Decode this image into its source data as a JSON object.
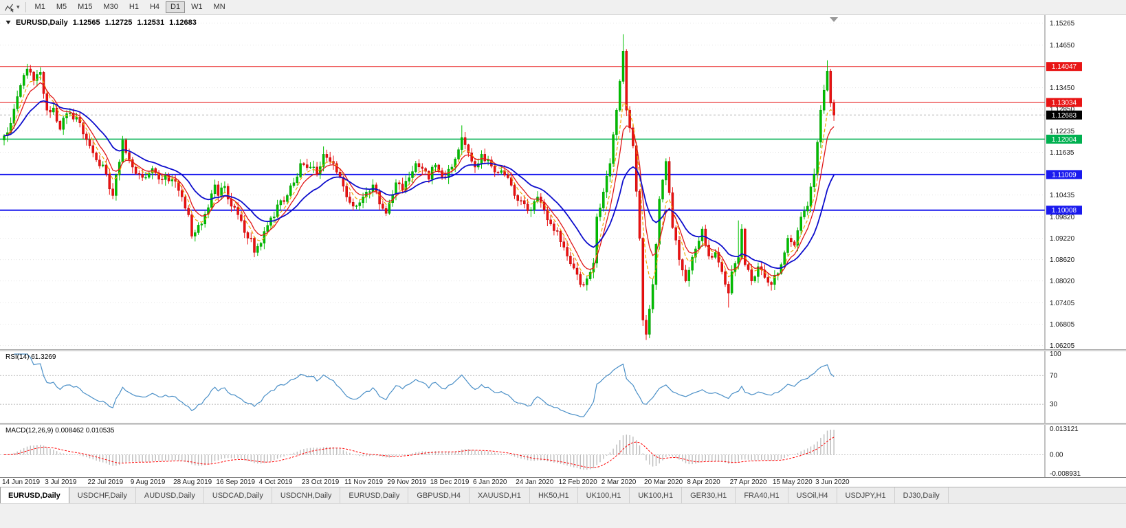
{
  "toolbar": {
    "timeframes": [
      {
        "label": "M1",
        "active": false
      },
      {
        "label": "M5",
        "active": false
      },
      {
        "label": "M15",
        "active": false
      },
      {
        "label": "M30",
        "active": false
      },
      {
        "label": "H1",
        "active": false
      },
      {
        "label": "H4",
        "active": false
      },
      {
        "label": "D1",
        "active": true
      },
      {
        "label": "W1",
        "active": false
      },
      {
        "label": "MN",
        "active": false
      }
    ]
  },
  "chart": {
    "symbol": "EURUSD,Daily",
    "ohlc": {
      "open": "1.12565",
      "high": "1.12725",
      "low": "1.12531",
      "close": "1.12683"
    }
  },
  "indicators": {
    "rsi_label": "RSI(14) 61.3269",
    "macd_label": "MACD(12,26,9) 0.008462 0.010535"
  },
  "tabs": [
    {
      "label": "EURUSD,Daily",
      "active": true
    },
    {
      "label": "USDCHF,Daily",
      "active": false
    },
    {
      "label": "AUDUSD,Daily",
      "active": false
    },
    {
      "label": "USDCAD,Daily",
      "active": false
    },
    {
      "label": "USDCNH,Daily",
      "active": false
    },
    {
      "label": "EURUSD,Daily",
      "active": false
    },
    {
      "label": "GBPUSD,H4",
      "active": false
    },
    {
      "label": "XAUUSD,H1",
      "active": false
    },
    {
      "label": "HK50,H1",
      "active": false
    },
    {
      "label": "UK100,H1",
      "active": false
    },
    {
      "label": "UK100,H1",
      "active": false
    },
    {
      "label": "GER30,H1",
      "active": false
    },
    {
      "label": "FRA40,H1",
      "active": false
    },
    {
      "label": "USOil,H4",
      "active": false
    },
    {
      "label": "USDJPY,H1",
      "active": false
    },
    {
      "label": "DJ30,Daily",
      "active": false
    }
  ],
  "chart_data": {
    "type": "candlestick",
    "symbol": "EURUSD",
    "timeframe": "Daily",
    "price_range": {
      "min": 1.061,
      "max": 1.1549
    },
    "price_axis_labels": [
      "1.15265",
      "1.14650",
      "1.13450",
      "1.12850",
      "1.12235",
      "1.11635",
      "1.10435",
      "1.09820",
      "1.09220",
      "1.08620",
      "1.08020",
      "1.07405",
      "1.06805",
      "1.06205"
    ],
    "levels": [
      {
        "price": 1.14047,
        "label": "1.14047",
        "color": "#e81515",
        "width": 1
      },
      {
        "price": 1.13034,
        "label": "1.13034",
        "color": "#e81515",
        "width": 1
      },
      {
        "price": 1.12004,
        "label": "1.12004",
        "color": "#00b050",
        "width": 1.5
      },
      {
        "price": 1.11009,
        "label": "1.11009",
        "color": "#1a1aee",
        "width": 2
      },
      {
        "price": 1.10008,
        "label": "1.10008",
        "color": "#1a1aee",
        "width": 2
      }
    ],
    "current_price": {
      "value": 1.12683,
      "label": "1.12683",
      "badge_color": "#000000"
    },
    "colors": {
      "up": "#00c000",
      "up_border": "#009000",
      "down": "#ee1111",
      "down_border": "#b00000",
      "grid": "#e4e4e4",
      "axis_text": "#111111",
      "rsi": "#4a8fc7",
      "macd_hist": "#bdbdbd",
      "macd_signal": "#ff0000"
    },
    "moving_averages": [
      {
        "period": 5,
        "method": "ema",
        "color": "#f0a500",
        "dash": "5 3",
        "width": 1.2
      },
      {
        "period": 8,
        "method": "ema",
        "color": "#e01818",
        "dash": "",
        "width": 1.3
      },
      {
        "period": 20,
        "method": "ema",
        "color": "#0d0dcc",
        "dash": "",
        "width": 1.8
      }
    ],
    "total_days": 253,
    "close_waypoints": [
      [
        0,
        1.121
      ],
      [
        2,
        1.1245
      ],
      [
        4,
        1.132
      ],
      [
        6,
        1.138
      ],
      [
        7,
        1.1398
      ],
      [
        9,
        1.1365
      ],
      [
        11,
        1.1388
      ],
      [
        13,
        1.1282
      ],
      [
        15,
        1.1288
      ],
      [
        17,
        1.1228
      ],
      [
        19,
        1.1272
      ],
      [
        22,
        1.1262
      ],
      [
        24,
        1.1215
      ],
      [
        26,
        1.1182
      ],
      [
        28,
        1.1142
      ],
      [
        30,
        1.1128
      ],
      [
        33,
        1.1042
      ],
      [
        36,
        1.1198
      ],
      [
        39,
        1.1122
      ],
      [
        41,
        1.1102
      ],
      [
        43,
        1.1093
      ],
      [
        45,
        1.1118
      ],
      [
        47,
        1.1088
      ],
      [
        49,
        1.1098
      ],
      [
        52,
        1.1082
      ],
      [
        54,
        1.1038
      ],
      [
        56,
        1.0988
      ],
      [
        57,
        1.0928
      ],
      [
        60,
        1.0962
      ],
      [
        62,
        1.1008
      ],
      [
        64,
        1.1072
      ],
      [
        65,
        1.1042
      ],
      [
        67,
        1.1068
      ],
      [
        69,
        1.1012
      ],
      [
        71,
        1.0988
      ],
      [
        73,
        1.0938
      ],
      [
        75,
        1.0922
      ],
      [
        76,
        1.0882
      ],
      [
        78,
        1.0908
      ],
      [
        80,
        1.0958
      ],
      [
        82,
        1.0982
      ],
      [
        84,
        1.1028
      ],
      [
        86,
        1.1042
      ],
      [
        88,
        1.1078
      ],
      [
        90,
        1.1132
      ],
      [
        93,
        1.1122
      ],
      [
        95,
        1.1102
      ],
      [
        97,
        1.1158
      ],
      [
        99,
        1.1138
      ],
      [
        101,
        1.1108
      ],
      [
        103,
        1.1068
      ],
      [
        104,
        1.1038
      ],
      [
        106,
        1.1012
      ],
      [
        108,
        1.1022
      ],
      [
        110,
        1.1052
      ],
      [
        112,
        1.1072
      ],
      [
        114,
        1.1018
      ],
      [
        116,
        1.0992
      ],
      [
        117,
        1.1022
      ],
      [
        119,
        1.1078
      ],
      [
        121,
        1.1058
      ],
      [
        123,
        1.1092
      ],
      [
        125,
        1.1132
      ],
      [
        127,
        1.1118
      ],
      [
        129,
        1.1088
      ],
      [
        130,
        1.1122
      ],
      [
        132,
        1.1112
      ],
      [
        134,
        1.1092
      ],
      [
        136,
        1.1122
      ],
      [
        139,
        1.1205
      ],
      [
        141,
        1.1162
      ],
      [
        143,
        1.1122
      ],
      [
        145,
        1.1158
      ],
      [
        147,
        1.1142
      ],
      [
        149,
        1.1108
      ],
      [
        151,
        1.1112
      ],
      [
        153,
        1.1092
      ],
      [
        155,
        1.1042
      ],
      [
        156,
        1.1028
      ],
      [
        158,
        1.1018
      ],
      [
        160,
        1.1002
      ],
      [
        162,
        1.1038
      ],
      [
        164,
        1.1002
      ],
      [
        166,
        1.0962
      ],
      [
        168,
        1.0942
      ],
      [
        169,
        1.0912
      ],
      [
        171,
        1.0872
      ],
      [
        173,
        1.0838
      ],
      [
        175,
        1.0792
      ],
      [
        177,
        1.0808
      ],
      [
        179,
        1.0852
      ],
      [
        180,
        1.0982
      ],
      [
        182,
        1.1052
      ],
      [
        184,
        1.1132
      ],
      [
        186,
        1.1282
      ],
      [
        188,
        1.1448
      ],
      [
        189,
        1.1282
      ],
      [
        191,
        1.1182
      ],
      [
        193,
        1.0922
      ],
      [
        194,
        1.0692
      ],
      [
        195,
        1.0652
      ],
      [
        197,
        1.0792
      ],
      [
        199,
        1.1032
      ],
      [
        201,
        1.1138
      ],
      [
        203,
        1.0952
      ],
      [
        205,
        1.0862
      ],
      [
        207,
        1.0802
      ],
      [
        208,
        1.0832
      ],
      [
        210,
        1.0892
      ],
      [
        212,
        1.0948
      ],
      [
        214,
        1.0872
      ],
      [
        216,
        1.0882
      ],
      [
        218,
        1.0828
      ],
      [
        220,
        1.0768
      ],
      [
        221,
        1.0828
      ],
      [
        223,
        1.0868
      ],
      [
        224,
        1.0948
      ],
      [
        225,
        1.0848
      ],
      [
        227,
        1.0802
      ],
      [
        229,
        1.0842
      ],
      [
        231,
        1.0812
      ],
      [
        233,
        1.0792
      ],
      [
        234,
        1.0818
      ],
      [
        236,
        1.0848
      ],
      [
        238,
        1.0922
      ],
      [
        240,
        1.0902
      ],
      [
        242,
        1.0982
      ],
      [
        244,
        1.1012
      ],
      [
        246,
        1.1102
      ],
      [
        247,
        1.1192
      ],
      [
        248,
        1.1282
      ],
      [
        249,
        1.1338
      ],
      [
        250,
        1.1392
      ],
      [
        251,
        1.1302
      ],
      [
        252,
        1.1268
      ]
    ],
    "wick_overrides": [
      [
        7,
        "h",
        1.1412
      ],
      [
        76,
        "l",
        1.0879
      ],
      [
        97,
        "h",
        1.118
      ],
      [
        139,
        "h",
        1.1239
      ],
      [
        188,
        "h",
        1.1495
      ],
      [
        195,
        "l",
        1.0636
      ],
      [
        220,
        "l",
        1.0727
      ],
      [
        223,
        "h",
        1.0972
      ],
      [
        250,
        "h",
        1.1422
      ]
    ],
    "date_ticks": [
      [
        0,
        "14 Jun 2019"
      ],
      [
        13,
        "3 Jul 2019"
      ],
      [
        26,
        "22 Jul 2019"
      ],
      [
        39,
        "9 Aug 2019"
      ],
      [
        52,
        "28 Aug 2019"
      ],
      [
        65,
        "16 Sep 2019"
      ],
      [
        78,
        "4 Oct 2019"
      ],
      [
        91,
        "23 Oct 2019"
      ],
      [
        104,
        "11 Nov 2019"
      ],
      [
        117,
        "29 Nov 2019"
      ],
      [
        130,
        "18 Dec 2019"
      ],
      [
        143,
        "6 Jan 2020"
      ],
      [
        156,
        "24 Jan 2020"
      ],
      [
        169,
        "12 Feb 2020"
      ],
      [
        182,
        "2 Mar 2020"
      ],
      [
        195,
        "20 Mar 2020"
      ],
      [
        208,
        "8 Apr 2020"
      ],
      [
        221,
        "27 Apr 2020"
      ],
      [
        234,
        "15 May 2020"
      ],
      [
        247,
        "3 Jun 2020"
      ]
    ],
    "rsi": {
      "period": 14,
      "current": 61.3269,
      "levels": [
        70,
        30
      ],
      "axis_labels": [
        [
          100,
          "100"
        ],
        [
          70,
          "70"
        ],
        [
          30,
          "30"
        ]
      ],
      "range": [
        10,
        100
      ]
    },
    "macd": {
      "fast": 12,
      "slow": 26,
      "signal": 9,
      "main_value": 0.008462,
      "signal_value": 0.010535,
      "range": [
        -0.008931,
        0.013121
      ],
      "axis_labels_top": "0.013121",
      "axis_label_zero": "0.00",
      "axis_label_bottom": "-0.008931"
    }
  }
}
